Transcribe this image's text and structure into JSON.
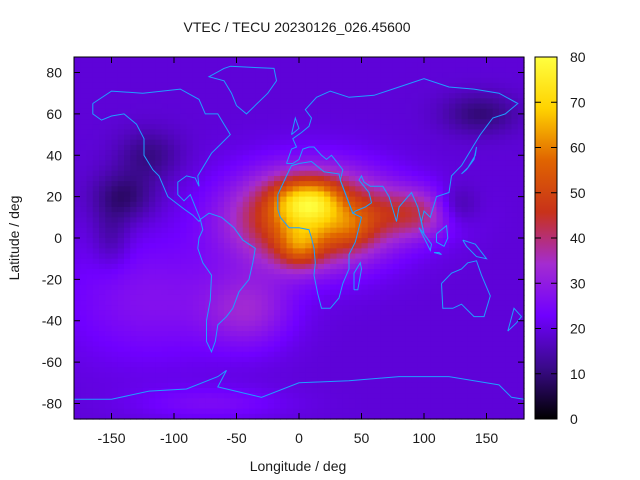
{
  "chart_data": {
    "type": "heatmap",
    "title": "VTEC / TECU 20230126_026.45600",
    "xlabel": "Longitude / deg",
    "ylabel": "Latitude / deg",
    "xlim": [
      -180,
      180
    ],
    "ylim": [
      -87.5,
      87.5
    ],
    "x_ticks": [
      -150,
      -100,
      -50,
      0,
      50,
      100,
      150
    ],
    "y_ticks": [
      -80,
      -60,
      -40,
      -20,
      0,
      20,
      40,
      60,
      80
    ],
    "colorbar": {
      "range": [
        0,
        80
      ],
      "ticks": [
        0,
        10,
        20,
        30,
        40,
        50,
        60,
        70,
        80
      ],
      "colormap": [
        "#000000",
        "#3a0a8a",
        "#7000ff",
        "#a42cd0",
        "#c8321a",
        "#e06400",
        "#ffd200",
        "#ffff40"
      ]
    },
    "grid_resolution": {
      "dlon": 5,
      "dlat": 2.5
    },
    "features": {
      "background_level": 19,
      "equatorial_crests": [
        {
          "lon": -5,
          "lat": 18,
          "peak": 68
        },
        {
          "lon": 15,
          "lat": 18,
          "peak": 70
        },
        {
          "lon": 0,
          "lat": -5,
          "peak": 70
        },
        {
          "lon": 45,
          "lat": 5,
          "peak": 62
        },
        {
          "lon": 125,
          "lat": 15,
          "peak": 45
        }
      ],
      "coastlines": "world continents outline (cyan)"
    }
  }
}
